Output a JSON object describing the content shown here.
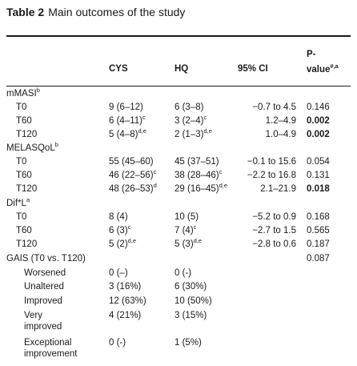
{
  "caption": {
    "label": "Table 2",
    "title": "Main outcomes of the study"
  },
  "headers": {
    "cys": "CYS",
    "hq": "HQ",
    "ci": "95% CI",
    "p_line1": "P-",
    "p_line2": "value",
    "p_sup": "#,a"
  },
  "rows": [
    {
      "label": "mMASI",
      "label_sup": "b",
      "type": "section"
    },
    {
      "label": "T0",
      "cys": "9 (6–12)",
      "hq": "6 (3–8)",
      "ci": "−0.7 to 4.5",
      "p": "0.146"
    },
    {
      "label": "T60",
      "cys": "6 (4–11)",
      "cys_sup": "c",
      "hq": "3 (2–4)",
      "hq_sup": "c",
      "ci": "1.2–4.9",
      "p": "0.002",
      "p_bold": true
    },
    {
      "label": "T120",
      "cys": "5 (4–8)",
      "cys_sup": "d,e",
      "hq": "2 (1–3)",
      "hq_sup": "d,e",
      "ci": "1.0–4.9",
      "p": "0.002",
      "p_bold": true
    },
    {
      "label": "MELASQoL",
      "label_sup": "b",
      "type": "section"
    },
    {
      "label": "T0",
      "cys": "55 (45–60)",
      "hq": "45 (37–51)",
      "ci": "−0.1 to 15.6",
      "p": "0.054"
    },
    {
      "label": "T60",
      "cys": "46 (22–56)",
      "cys_sup": "c",
      "hq": "38 (28–46)",
      "hq_sup": "c",
      "ci": "−2.2 to 16.8",
      "p": "0.131"
    },
    {
      "label": "T120",
      "cys": "48 (26–53)",
      "cys_sup": "d",
      "hq": "29 (16–45)",
      "hq_sup": "d,e",
      "ci": "2.1–21.9",
      "p": "0.018",
      "p_bold": true
    },
    {
      "label": "Dif*L",
      "label_sup": "a",
      "type": "section"
    },
    {
      "label": "T0",
      "cys": "8 (4)",
      "hq": "10 (5)",
      "ci": "−5.2 to 0.9",
      "p": "0.168"
    },
    {
      "label": "T60",
      "cys": "6 (3)",
      "cys_sup": "c",
      "hq": "7 (4)",
      "hq_sup": "c",
      "ci": "−2.7 to 1.5",
      "p": "0.565"
    },
    {
      "label": "T120",
      "cys": "5 (2)",
      "cys_sup": "d,e",
      "hq": "5 (3)",
      "hq_sup": "d,e",
      "ci": "−2.8 to 0.6",
      "p": "0.187"
    },
    {
      "label": "GAIS (T0 vs. T120)",
      "type": "section",
      "p": "0.087"
    },
    {
      "label": "Worsened",
      "type": "sub",
      "cys": "0 (–)",
      "hq": "0 (-)"
    },
    {
      "label": "Unaltered",
      "type": "sub",
      "cys": "3 (16%)",
      "hq": "6 (30%)"
    },
    {
      "label": "Improved",
      "type": "sub",
      "cys": "12 (63%)",
      "hq": "10 (50%)"
    },
    {
      "label": "Very",
      "label2": "improved",
      "type": "sub",
      "cys": "4 (21%)",
      "hq": "3 (15%)"
    },
    {
      "label": "Exceptional",
      "label2": "improvement",
      "type": "sub",
      "cys": "0 (-)",
      "hq": "1 (5%)"
    }
  ]
}
